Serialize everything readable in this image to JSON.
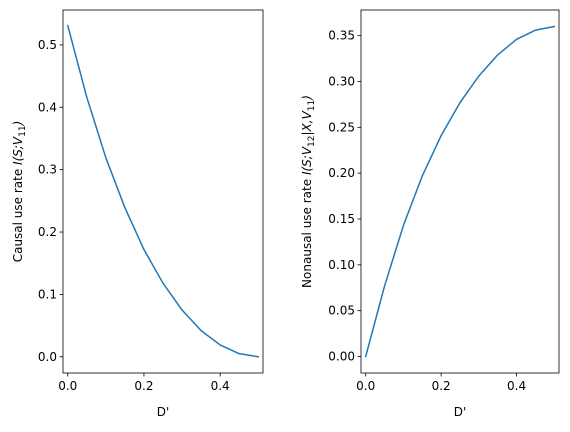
{
  "chart_data": [
    {
      "type": "line",
      "xlabel": "D'",
      "ylabel": "Causal use rate $I(S;V_{11})$",
      "xlim": [
        -0.0125,
        0.5125
      ],
      "ylim": [
        -0.026,
        0.556
      ],
      "xticks": [
        0.0,
        0.2,
        0.4
      ],
      "xtick_labels": [
        "0.0",
        "0.2",
        "0.4"
      ],
      "yticks": [
        0.0,
        0.1,
        0.2,
        0.3,
        0.4,
        0.5
      ],
      "ytick_labels": [
        "0.0",
        "0.1",
        "0.2",
        "0.3",
        "0.4",
        "0.5"
      ],
      "grid": false,
      "color": "#1f77b4",
      "x": [
        0.0,
        0.05,
        0.1,
        0.15,
        0.2,
        0.25,
        0.3,
        0.35,
        0.4,
        0.45,
        0.5
      ],
      "y": [
        0.531,
        0.416,
        0.319,
        0.239,
        0.172,
        0.118,
        0.075,
        0.042,
        0.019,
        0.005,
        0.0
      ]
    },
    {
      "type": "line",
      "xlabel": "D'",
      "ylabel": "Nonausal use rate $I(S;V_{12}|X,V_{11})$",
      "xlim": [
        -0.0125,
        0.5125
      ],
      "ylim": [
        -0.018,
        0.378
      ],
      "xticks": [
        0.0,
        0.2,
        0.4
      ],
      "xtick_labels": [
        "0.0",
        "0.2",
        "0.4"
      ],
      "yticks": [
        0.0,
        0.05,
        0.1,
        0.15,
        0.2,
        0.25,
        0.3,
        0.35
      ],
      "ytick_labels": [
        "0.00",
        "0.05",
        "0.10",
        "0.15",
        "0.20",
        "0.25",
        "0.30",
        "0.35"
      ],
      "grid": false,
      "color": "#1f77b4",
      "x": [
        0.0,
        0.05,
        0.1,
        0.15,
        0.2,
        0.25,
        0.3,
        0.35,
        0.4,
        0.45,
        0.5
      ],
      "y": [
        0.0,
        0.077,
        0.143,
        0.197,
        0.241,
        0.277,
        0.306,
        0.329,
        0.346,
        0.356,
        0.36
      ]
    }
  ]
}
